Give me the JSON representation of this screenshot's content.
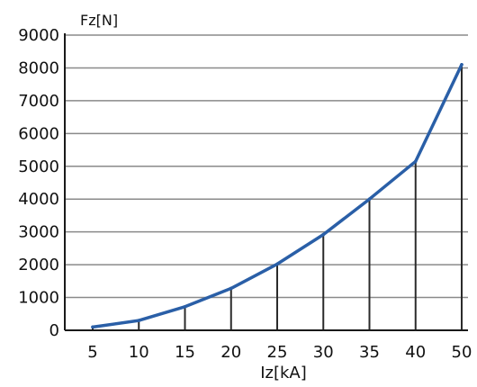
{
  "chart_data": {
    "type": "line",
    "title": "",
    "ylabel": "Fz[N]",
    "xlabel": "Iz[kA]",
    "categories": [
      "5",
      "10",
      "15",
      "20",
      "25",
      "30",
      "35",
      "40",
      "50"
    ],
    "series": [
      {
        "name": "",
        "values": [
          100,
          300,
          720,
          1280,
          2020,
          2920,
          4000,
          5150,
          8100
        ]
      }
    ],
    "yticks": [
      "0",
      "1000",
      "2000",
      "3000",
      "4000",
      "5000",
      "6000",
      "7000",
      "8000",
      "9000"
    ],
    "ylim": [
      0,
      9000
    ],
    "grid": "horizontal",
    "drop_lines": true,
    "line_color": "#2a5fa7"
  }
}
